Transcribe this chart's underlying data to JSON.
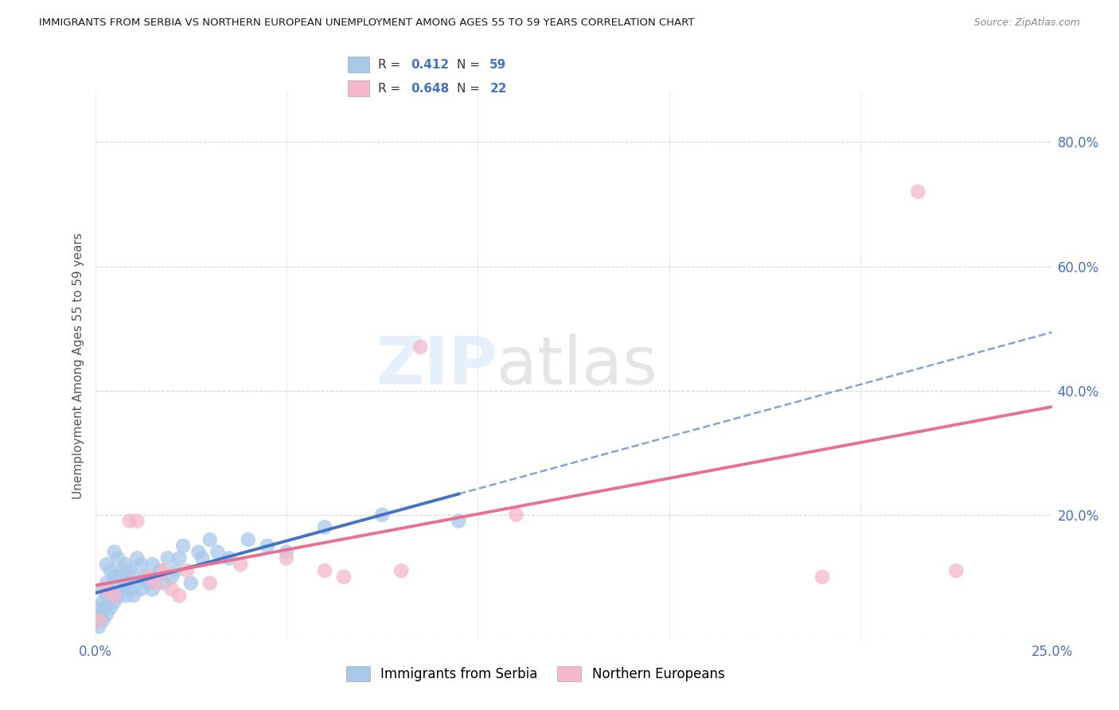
{
  "title": "IMMIGRANTS FROM SERBIA VS NORTHERN EUROPEAN UNEMPLOYMENT AMONG AGES 55 TO 59 YEARS CORRELATION CHART",
  "source": "Source: ZipAtlas.com",
  "ylabel": "Unemployment Among Ages 55 to 59 years",
  "xlim": [
    0.0,
    0.25
  ],
  "ylim": [
    0.0,
    0.88
  ],
  "xticks": [
    0.0,
    0.05,
    0.1,
    0.15,
    0.2,
    0.25
  ],
  "yticks": [
    0.0,
    0.2,
    0.4,
    0.6,
    0.8
  ],
  "ytick_labels": [
    "",
    "20.0%",
    "40.0%",
    "60.0%",
    "80.0%"
  ],
  "serbia_R": "0.412",
  "serbia_N": "59",
  "ne_R": "0.648",
  "ne_N": "22",
  "serbia_color": "#a8c8ea",
  "ne_color": "#f5b8cb",
  "serbia_line_color": "#4472c4",
  "ne_line_color": "#e87090",
  "grid_color": "#cccccc",
  "tick_color": "#4472c4",
  "serbia_scatter_x": [
    0.0005,
    0.001,
    0.001,
    0.0015,
    0.002,
    0.002,
    0.002,
    0.0025,
    0.003,
    0.003,
    0.003,
    0.003,
    0.004,
    0.004,
    0.004,
    0.0045,
    0.005,
    0.005,
    0.005,
    0.006,
    0.006,
    0.006,
    0.007,
    0.007,
    0.008,
    0.008,
    0.008,
    0.009,
    0.009,
    0.01,
    0.01,
    0.011,
    0.011,
    0.012,
    0.012,
    0.013,
    0.014,
    0.015,
    0.015,
    0.016,
    0.017,
    0.018,
    0.019,
    0.02,
    0.021,
    0.022,
    0.023,
    0.025,
    0.027,
    0.028,
    0.03,
    0.032,
    0.035,
    0.04,
    0.045,
    0.05,
    0.06,
    0.075,
    0.095
  ],
  "serbia_scatter_y": [
    0.03,
    0.02,
    0.05,
    0.04,
    0.03,
    0.06,
    0.08,
    0.05,
    0.04,
    0.07,
    0.09,
    0.12,
    0.05,
    0.08,
    0.11,
    0.07,
    0.06,
    0.1,
    0.14,
    0.07,
    0.1,
    0.13,
    0.08,
    0.11,
    0.07,
    0.09,
    0.12,
    0.08,
    0.11,
    0.07,
    0.1,
    0.09,
    0.13,
    0.08,
    0.12,
    0.1,
    0.09,
    0.08,
    0.12,
    0.1,
    0.11,
    0.09,
    0.13,
    0.1,
    0.11,
    0.13,
    0.15,
    0.09,
    0.14,
    0.13,
    0.16,
    0.14,
    0.13,
    0.16,
    0.15,
    0.14,
    0.18,
    0.2,
    0.19
  ],
  "ne_scatter_x": [
    0.001,
    0.003,
    0.005,
    0.009,
    0.011,
    0.014,
    0.016,
    0.018,
    0.02,
    0.022,
    0.024,
    0.03,
    0.038,
    0.05,
    0.06,
    0.065,
    0.08,
    0.085,
    0.11,
    0.19,
    0.215,
    0.225
  ],
  "ne_scatter_y": [
    0.03,
    0.08,
    0.07,
    0.19,
    0.19,
    0.1,
    0.09,
    0.11,
    0.08,
    0.07,
    0.11,
    0.09,
    0.12,
    0.13,
    0.11,
    0.1,
    0.11,
    0.47,
    0.2,
    0.1,
    0.72,
    0.11
  ]
}
